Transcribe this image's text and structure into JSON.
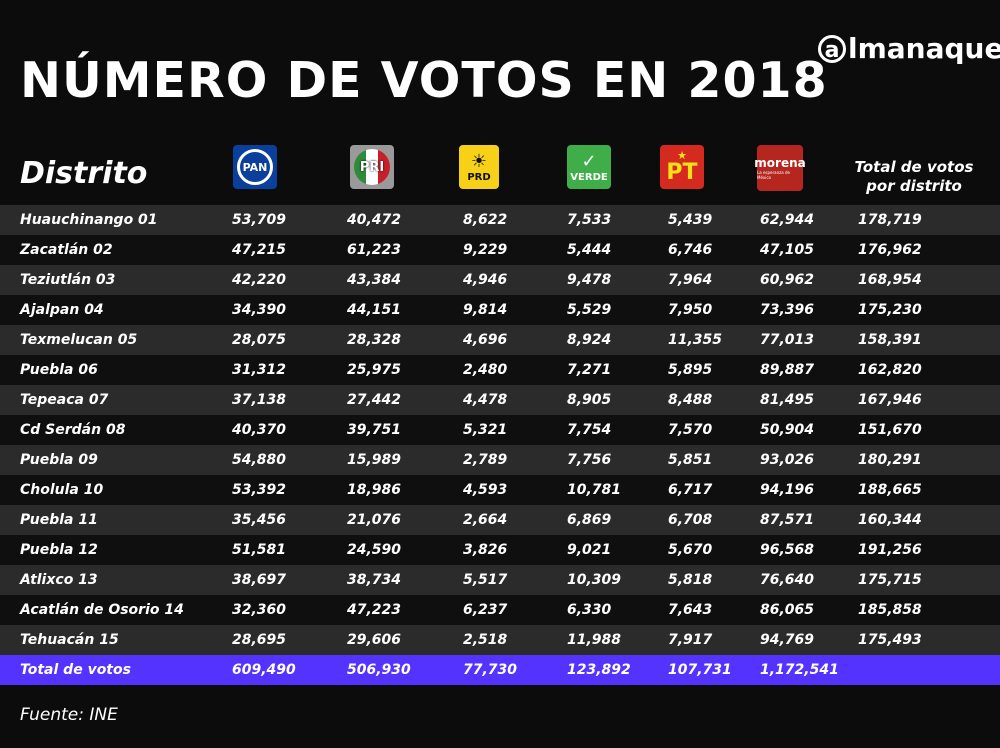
{
  "title": "NÚMERO DE VOTOS EN 2018",
  "brand": {
    "symbol": "a",
    "name": "lmanaque"
  },
  "header": {
    "district": "Distrito",
    "total": "Total de votos por distrito"
  },
  "parties": [
    {
      "name": "PAN",
      "color": "#0a3f9c"
    },
    {
      "name": "PRI",
      "color": "#c8202b"
    },
    {
      "name": "PRD",
      "color": "#f7d117"
    },
    {
      "name": "VERDE",
      "color": "#3fae49"
    },
    {
      "name": "PT",
      "color": "#d42a20"
    },
    {
      "name": "morena",
      "subtitle": "La esperanza de México",
      "color": "#b5261e"
    }
  ],
  "source": "Fuente: INE",
  "chart_data": {
    "type": "table",
    "title": "NÚMERO DE VOTOS EN 2018",
    "columns": [
      "Distrito",
      "PAN",
      "PRI",
      "PRD",
      "VERDE",
      "PT",
      "morena",
      "Total de votos por distrito"
    ],
    "rows": [
      [
        "Huauchinango 01",
        "53,709",
        "40,472",
        "8,622",
        "7,533",
        "5,439",
        "62,944",
        "178,719"
      ],
      [
        "Zacatlán 02",
        "47,215",
        "61,223",
        "9,229",
        "5,444",
        "6,746",
        "47,105",
        "176,962"
      ],
      [
        "Teziutlán 03",
        "42,220",
        "43,384",
        "4,946",
        "9,478",
        "7,964",
        "60,962",
        "168,954"
      ],
      [
        "Ajalpan 04",
        "34,390",
        "44,151",
        "9,814",
        "5,529",
        "7,950",
        "73,396",
        "175,230"
      ],
      [
        "Texmelucan 05",
        "28,075",
        "28,328",
        "4,696",
        "8,924",
        "11,355",
        "77,013",
        "158,391"
      ],
      [
        "Puebla 06",
        "31,312",
        "25,975",
        "2,480",
        "7,271",
        "5,895",
        "89,887",
        "162,820"
      ],
      [
        "Tepeaca 07",
        "37,138",
        "27,442",
        "4,478",
        "8,905",
        "8,488",
        "81,495",
        "167,946"
      ],
      [
        "Cd Serdán 08",
        "40,370",
        "39,751",
        "5,321",
        "7,754",
        "7,570",
        "50,904",
        "151,670"
      ],
      [
        "Puebla 09",
        "54,880",
        "15,989",
        "2,789",
        "7,756",
        "5,851",
        "93,026",
        "180,291"
      ],
      [
        "Cholula 10",
        "53,392",
        "18,986",
        "4,593",
        "10,781",
        "6,717",
        "94,196",
        "188,665"
      ],
      [
        "Puebla 11",
        "35,456",
        "21,076",
        "2,664",
        "6,869",
        "6,708",
        "87,571",
        "160,344"
      ],
      [
        "Puebla 12",
        "51,581",
        "24,590",
        "3,826",
        "9,021",
        "5,670",
        "96,568",
        "191,256"
      ],
      [
        "Atlixco 13",
        "38,697",
        "38,734",
        "5,517",
        "10,309",
        "5,818",
        "76,640",
        "175,715"
      ],
      [
        "Acatlán de Osorio 14",
        "32,360",
        "47,223",
        "6,237",
        "6,330",
        "7,643",
        "86,065",
        "185,858"
      ],
      [
        "Tehuacán 15",
        "28,695",
        "29,606",
        "2,518",
        "11,988",
        "7,917",
        "94,769",
        "175,493"
      ]
    ],
    "total_row": [
      "Total de votos",
      "609,490",
      "506,930",
      "77,730",
      "123,892",
      "107,731",
      "1,172,541",
      ""
    ],
    "total_row_color": "#5533ff"
  }
}
